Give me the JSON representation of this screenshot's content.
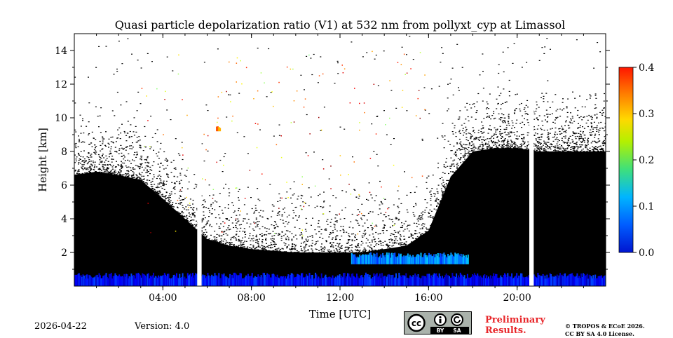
{
  "chart_data": {
    "type": "heatmap",
    "title": "Quasi particle depolarization ratio (V1) at 532 nm from pollyxt_cyp at Limassol",
    "xlabel": "Time [UTC]",
    "ylabel": "Height [km]",
    "xlim": [
      0,
      24
    ],
    "ylim": [
      0,
      15
    ],
    "x_ticks": [
      "04:00",
      "08:00",
      "12:00",
      "16:00",
      "20:00"
    ],
    "y_ticks": [
      "2",
      "4",
      "6",
      "8",
      "10",
      "12",
      "14"
    ],
    "colorbar": {
      "range": [
        0.0,
        0.4
      ],
      "ticks": [
        "0.0",
        "0.1",
        "0.2",
        "0.3",
        "0.4"
      ],
      "colormap": "jet"
    },
    "signal_top_km_by_hour": [
      6.6,
      6.8,
      6.6,
      6.3,
      5.2,
      4.0,
      2.8,
      2.4,
      2.2,
      2.1,
      2.0,
      2.0,
      2.0,
      2.0,
      2.2,
      2.4,
      3.3,
      6.5,
      8.0,
      8.2,
      8.2,
      8.0,
      8.0,
      8.0,
      8.0
    ],
    "data_gaps_utc": [
      [
        5.55,
        5.75
      ],
      [
        20.55,
        20.75
      ]
    ],
    "aerosol_layers": [
      {
        "name": "near-surface layer",
        "time_start": 0.0,
        "time_end": 24.0,
        "height_km": [
          0.0,
          0.8
        ],
        "depol": 0.05
      },
      {
        "name": "elevated layer",
        "time_start": 12.5,
        "time_end": 17.8,
        "height_km": [
          1.3,
          2.0
        ],
        "depol": 0.1
      },
      {
        "name": "isolated feature",
        "time_start": 6.4,
        "time_end": 6.6,
        "height_km": [
          9.2,
          9.5
        ],
        "depol": 0.3
      }
    ],
    "colors": {
      "depol_low": "#0011ff",
      "depol_high": "#ff1a00",
      "no_data": "#ffffff",
      "masked_signal": "#000000"
    }
  },
  "footer": {
    "date": "2026-04-22",
    "version": "Version: 4.0",
    "license_badge": [
      "BY",
      "SA"
    ],
    "preliminary": [
      "Preliminary",
      "Results."
    ],
    "copyright": [
      "© TROPOS & ECoE 2026.",
      "CC BY SA 4.0 License."
    ]
  }
}
